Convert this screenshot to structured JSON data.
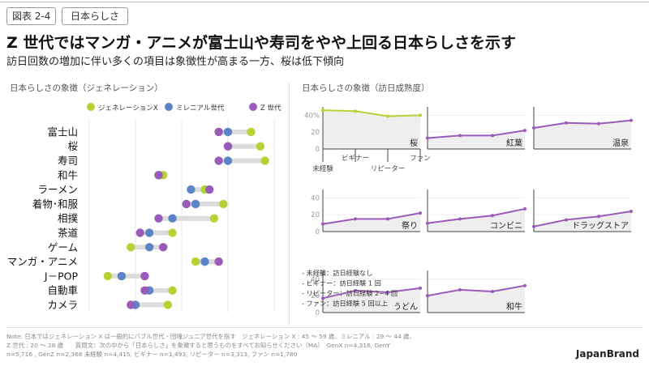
{
  "header": {
    "figure_label": "図表 2-4",
    "tag": "日本らしさ",
    "headline": "Z 世代ではマンガ・アニメが富士山や寿司をやや上回る日本らしさを示す",
    "subhead": "訪日回数の増加に伴い多くの項目は象徴性が高まる一方、桜は低下傾向"
  },
  "left_panel": {
    "title": "日本らしさの象徴（ジェネレーション）"
  },
  "right_panel": {
    "title": "日本らしさの象徴（訪日成熟度）"
  },
  "legend_notes": [
    "- 未経験：訪日経験なし",
    "- ビギナー：訪日経験 1 回",
    "- リピーター：訪日経験 2~4 回",
    "- ファン：訪日経験 5 回以上"
  ],
  "note_lines": [
    "Note: 日本ではジェネレーション X は一般的にバブル世代・団塊ジュニア世代を指す　ジェネレーション X : 45 〜 59 歳、ミレニアル : 29 〜 44 歳、",
    "Z 世代 : 20 〜 28 歳　　質問文：次の中から「日本らしさ」を象徴すると思うものをすべてお知らせください（MA）　GenX n=4,316, GenY",
    "n=5,716 , GenZ n=2,368  未経験 n=4,415, ビギナー n=1,493, リピーター n=3,313, ファン n=1,780"
  ],
  "brand": "JapanBrand",
  "colors": {
    "genx": "#b5d334",
    "millennial": "#5b84c6",
    "genz": "#9a5ab9",
    "line": "#9a5ab9",
    "sakura_line": "#b5d334",
    "fill": "#eeeeee"
  },
  "chart_data": [
    {
      "type": "scatter",
      "subtype": "dumbbell",
      "title": "日本らしさの象徴（ジェネレーション）",
      "legend_position": "top",
      "categories": [
        "富士山",
        "桜",
        "寿司",
        "和牛",
        "ラーメン",
        "着物･和服",
        "相撲",
        "茶道",
        "ゲーム",
        "マンガ・アニメ",
        "J－POP",
        "自動車",
        "カメラ"
      ],
      "series": [
        {
          "name": "ジェネレーションX",
          "values": [
            45,
            47,
            48,
            26,
            35,
            39,
            37,
            28,
            19,
            33,
            14,
            28,
            27
          ]
        },
        {
          "name": "ミレニアル世代",
          "values": [
            40,
            40,
            40,
            25,
            32,
            33,
            28,
            23,
            23,
            35,
            17,
            23,
            20
          ]
        },
        {
          "name": "Z 世代",
          "values": [
            38,
            40,
            38,
            25,
            36,
            31,
            25,
            21,
            26,
            38,
            22,
            22,
            19
          ]
        }
      ],
      "xlim": [
        10,
        50
      ],
      "x_ticks": [
        "10",
        "20",
        "30",
        "40",
        "50%"
      ],
      "grid": true
    },
    {
      "type": "area",
      "title": "日本らしさの象徴（訪日成熟度）",
      "x": [
        "未経験",
        "ビギナー",
        "リピーター",
        "ファン"
      ],
      "ylim": [
        0,
        50
      ],
      "panels": [
        {
          "name": "桜",
          "values": [
            46,
            45,
            39,
            40
          ],
          "y_ticks": [
            "40%",
            "20",
            "0"
          ],
          "show_x_labels": true
        },
        {
          "name": "紅葉",
          "values": [
            13,
            16,
            16,
            22
          ]
        },
        {
          "name": "温泉",
          "values": [
            25,
            31,
            30,
            34
          ]
        },
        {
          "name": "祭り",
          "values": [
            9,
            15,
            15,
            22
          ],
          "y_ticks": [
            "40",
            "20",
            "0"
          ]
        },
        {
          "name": "コンビニ",
          "values": [
            10,
            15,
            19,
            27
          ]
        },
        {
          "name": "ドラッグストア",
          "values": [
            6,
            14,
            18,
            24
          ]
        },
        {
          "name": "うどん",
          "values": [
            17,
            26,
            24,
            29
          ],
          "y_ticks": [
            "40",
            "20",
            "0"
          ]
        },
        {
          "name": "和牛",
          "values": [
            20,
            27,
            25,
            32
          ]
        }
      ]
    }
  ]
}
